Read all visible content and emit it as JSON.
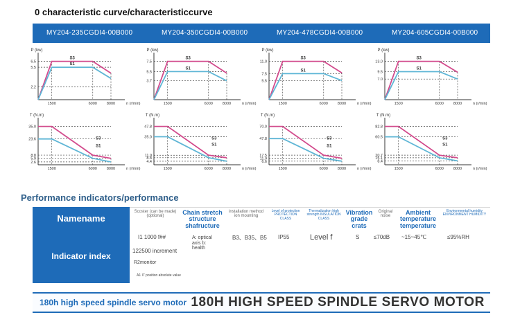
{
  "header": {
    "curve_title": "0 characteristic curve/characteristiccurve",
    "models": [
      "MY204-235CGDI4-00B000",
      "MY204-350CGDI4-00B000",
      "MY204-478CGDI4-00B000",
      "MY204-605CGDI4-00B000"
    ]
  },
  "chart_data": [
    {
      "type": "line",
      "ylabel": "P (kw)",
      "xlabel": "n (r/min)",
      "x_ticks": [
        "1500",
        "6000",
        "8000"
      ],
      "y_ticks": [
        "6.5",
        "5.5",
        "2.2"
      ],
      "series": [
        {
          "name": "S3",
          "x": [
            0,
            1500,
            6000,
            8000
          ],
          "y": [
            0,
            6.5,
            6.5,
            4.5
          ]
        },
        {
          "name": "S1",
          "x": [
            0,
            1500,
            6000,
            8000
          ],
          "y": [
            0,
            5.5,
            5.5,
            3.6
          ]
        }
      ]
    },
    {
      "type": "line",
      "ylabel": "P (kw)",
      "xlabel": "n (r/min)",
      "x_ticks": [
        "1500",
        "6000",
        "8000"
      ],
      "y_ticks": [
        "7.5",
        "5.5",
        "3.7"
      ],
      "series": [
        {
          "name": "S3",
          "x": [
            0,
            1500,
            6000,
            8000
          ],
          "y": [
            0,
            7.5,
            7.5,
            5.2
          ]
        },
        {
          "name": "S1",
          "x": [
            0,
            1500,
            6000,
            8000
          ],
          "y": [
            0,
            5.5,
            5.5,
            3.7
          ]
        }
      ]
    },
    {
      "type": "line",
      "ylabel": "P (kw)",
      "xlabel": "n (r/min)",
      "x_ticks": [
        "1500",
        "6000",
        "8000"
      ],
      "y_ticks": [
        "11.0",
        "7.5",
        "5.5"
      ],
      "series": [
        {
          "name": "S3",
          "x": [
            0,
            1500,
            6000,
            8000
          ],
          "y": [
            0,
            11.0,
            11.0,
            7.7
          ]
        },
        {
          "name": "S1",
          "x": [
            0,
            1500,
            6000,
            8000
          ],
          "y": [
            0,
            7.5,
            7.5,
            5.5
          ]
        }
      ]
    },
    {
      "type": "line",
      "ylabel": "P (kw)",
      "xlabel": "n (r/min)",
      "x_ticks": [
        "1500",
        "6000",
        "8000"
      ],
      "y_ticks": [
        "13.0",
        "9.5",
        "7.0"
      ],
      "series": [
        {
          "name": "S3",
          "x": [
            0,
            1500,
            6000,
            8000
          ],
          "y": [
            0,
            13.0,
            13.0,
            9.3
          ]
        },
        {
          "name": "S1",
          "x": [
            0,
            1500,
            6000,
            8000
          ],
          "y": [
            0,
            9.5,
            9.5,
            7.0
          ]
        }
      ]
    },
    {
      "type": "line",
      "ylabel": "T (N.m)",
      "xlabel": "n (r/min)",
      "x_ticks": [
        "1500",
        "6000",
        "8000"
      ],
      "y_ticks": [
        "35.0",
        "23.6",
        "8.8",
        "5.9",
        "2.6"
      ],
      "series": [
        {
          "name": "S3",
          "x": [
            0,
            1500,
            6000,
            8000
          ],
          "y": [
            35.0,
            35.0,
            8.8,
            5.9
          ]
        },
        {
          "name": "S1",
          "x": [
            0,
            1500,
            6000,
            8000
          ],
          "y": [
            23.6,
            23.6,
            5.9,
            2.6
          ]
        }
      ]
    },
    {
      "type": "line",
      "ylabel": "T (N.m)",
      "xlabel": "n (r/min)",
      "x_ticks": [
        "1500",
        "6000",
        "8000"
      ],
      "y_ticks": [
        "47.8",
        "35.0",
        "11.9",
        "8.8",
        "4.4"
      ],
      "series": [
        {
          "name": "S3",
          "x": [
            0,
            1500,
            6000,
            8000
          ],
          "y": [
            47.8,
            47.8,
            11.9,
            8.8
          ]
        },
        {
          "name": "S1",
          "x": [
            0,
            1500,
            6000,
            8000
          ],
          "y": [
            35.0,
            35.0,
            8.8,
            4.4
          ]
        }
      ]
    },
    {
      "type": "line",
      "ylabel": "T (N.m)",
      "xlabel": "n (r/min)",
      "x_ticks": [
        "1500",
        "6000",
        "8000"
      ],
      "y_ticks": [
        "70.0",
        "47.8",
        "17.5",
        "11.9",
        "6.6"
      ],
      "series": [
        {
          "name": "S3",
          "x": [
            0,
            1500,
            6000,
            8000
          ],
          "y": [
            70.0,
            70.0,
            17.5,
            11.9
          ]
        },
        {
          "name": "S1",
          "x": [
            0,
            1500,
            6000,
            8000
          ],
          "y": [
            47.8,
            47.8,
            11.9,
            6.6
          ]
        }
      ]
    },
    {
      "type": "line",
      "ylabel": "T (N.m)",
      "xlabel": "n (r/min)",
      "x_ticks": [
        "1500",
        "6000",
        "8000"
      ],
      "y_ticks": [
        "82.8",
        "60.5",
        "20.7",
        "15.1",
        "8.4"
      ],
      "series": [
        {
          "name": "S3",
          "x": [
            0,
            1500,
            6000,
            8000
          ],
          "y": [
            82.8,
            82.8,
            20.7,
            15.1
          ]
        },
        {
          "name": "S1",
          "x": [
            0,
            1500,
            6000,
            8000
          ],
          "y": [
            60.5,
            60.5,
            15.1,
            8.4
          ]
        }
      ]
    }
  ],
  "performance": {
    "title": "Performance indicators/performance",
    "name_header": "Namename",
    "row_header": "Indicator index",
    "columns": [
      {
        "main": "Scoster (can be made) (optional)",
        "style": "small"
      },
      {
        "main": "Chain stretch structure shafructure",
        "style": "big"
      },
      {
        "main": "installation method ion mounting",
        "style": "small"
      },
      {
        "main": "Level of protection PROTECTION CLASS",
        "style": "mix"
      },
      {
        "main": "Thermalization high strength INSULATION CLASS",
        "style": "mix"
      },
      {
        "main": "Vibration grade crats",
        "style": "big"
      },
      {
        "main": "Original noise",
        "style": "small"
      },
      {
        "main": "Ambient temperature temperature",
        "style": "big"
      },
      {
        "main": "Environmental humidity ENVIRONMENT HUMIDITY",
        "style": "mix"
      }
    ],
    "values": {
      "v1": "I1  1000 f##",
      "v1b": "A: optical axis b: health",
      "v2": "122500 increment",
      "v3": "R2monitor",
      "v4": "A1 I7 position absolute value",
      "mount": "B3、B35、B5",
      "ip": "IP55",
      "insulation": "Level f",
      "vibration": "S",
      "noise": "≤70dB",
      "temp": "~15~45℃",
      "humidity": "≤95%RH"
    }
  },
  "footer": {
    "left": "180h high speed spindle servo motor",
    "right": "180H HIGH SPEED SPINDLE SERVO MOTOR"
  },
  "colors": {
    "s3": "#d24a8c",
    "s1": "#5fb6d6",
    "accent": "#1e6bb8"
  }
}
